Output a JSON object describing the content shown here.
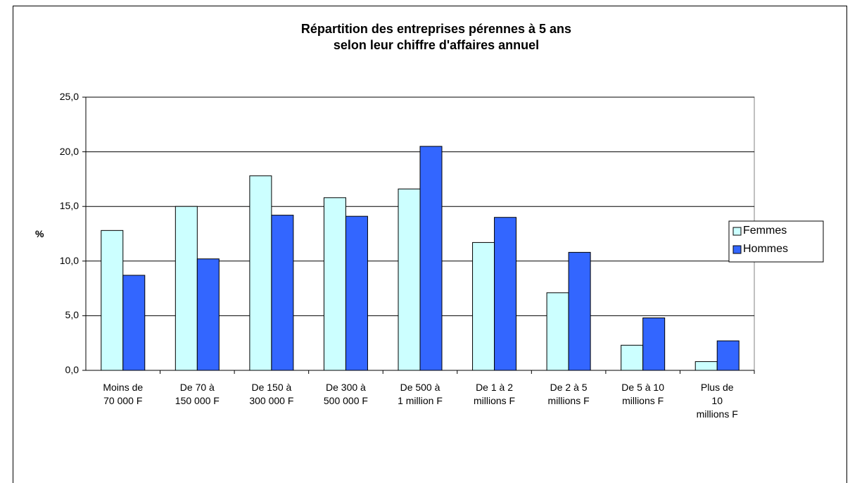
{
  "chart_data": {
    "type": "bar",
    "title": "Répartition des entreprises pérennes à 5 ans\nselon leur chiffre d'affaires annuel",
    "y_label": "%",
    "categories": [
      "Moins de\n70 000 F",
      "De 70 à\n150 000 F",
      "De 150 à\n300 000 F",
      "De 300 à\n500 000 F",
      "De 500 à\n1 million F",
      "De 1 à 2\nmillions F",
      "De 2 à 5\nmillions F",
      "De 5 à 10\nmillions F",
      "Plus de\n10\nmillions F"
    ],
    "series": [
      {
        "name": "Femmes",
        "color": "#ccffff",
        "values": [
          12.8,
          15.0,
          17.8,
          15.8,
          16.6,
          11.7,
          7.1,
          2.3,
          0.8
        ]
      },
      {
        "name": "Hommes",
        "color": "#3366ff",
        "values": [
          8.7,
          10.2,
          14.2,
          14.1,
          20.5,
          14.0,
          10.8,
          4.8,
          2.7
        ]
      }
    ],
    "ylim": [
      0,
      25
    ],
    "yticks": [
      {
        "value": 0,
        "label": "0,0"
      },
      {
        "value": 5,
        "label": "5,0"
      },
      {
        "value": 10,
        "label": "10,0"
      },
      {
        "value": 15,
        "label": "15,0"
      },
      {
        "value": 20,
        "label": "20,0"
      },
      {
        "value": 25,
        "label": "25,0"
      }
    ],
    "grid": true,
    "legend": "right"
  }
}
